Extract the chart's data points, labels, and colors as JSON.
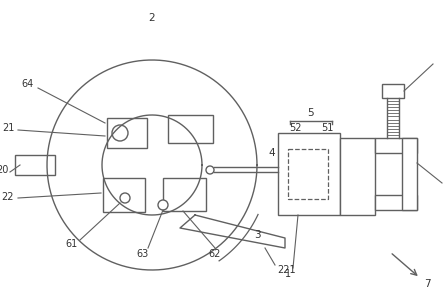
{
  "bg_color": "#ffffff",
  "line_color": "#606060",
  "text_color": "#333333",
  "fig_width": 4.43,
  "fig_height": 3.06,
  "dpi": 100,
  "lw": 1.0
}
